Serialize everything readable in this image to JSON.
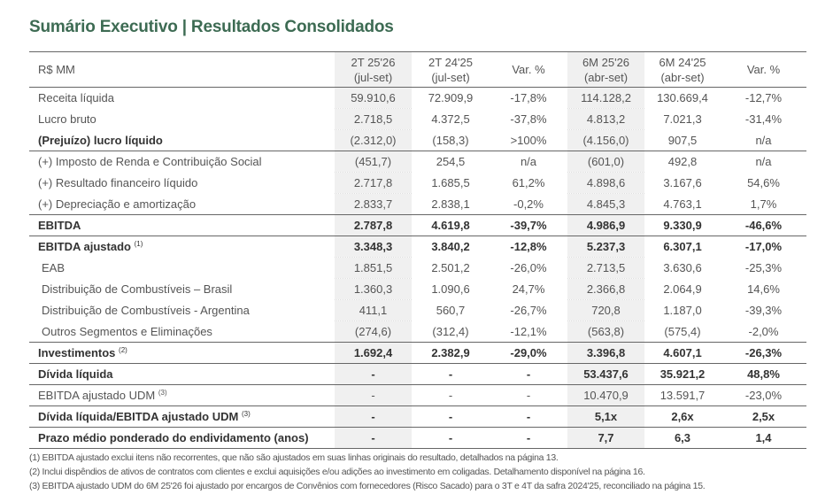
{
  "title": "Sumário Executivo | Resultados Consolidados",
  "table": {
    "unit_header": "R$ MM",
    "columns": [
      {
        "line1": "2T 25'26",
        "line2": "(jul-set)"
      },
      {
        "line1": "2T 24'25",
        "line2": "(jul-set)"
      },
      {
        "line1": "Var. %",
        "line2": ""
      },
      {
        "line1": "6M 25'26",
        "line2": "(abr-set)"
      },
      {
        "line1": "6M 24'25",
        "line2": "(abr-set)"
      },
      {
        "line1": "Var. %",
        "line2": ""
      }
    ],
    "rows": [
      {
        "label": "Receita líquida",
        "sup": "",
        "values": [
          "59.910,6",
          "72.909,9",
          "-17,8%",
          "114.128,2",
          "130.669,4",
          "-12,7%"
        ]
      },
      {
        "label": "Lucro bruto",
        "sup": "",
        "values": [
          "2.718,5",
          "4.372,5",
          "-37,8%",
          "4.813,2",
          "7.021,3",
          "-31,4%"
        ]
      },
      {
        "label": "(Prejuízo) lucro líquido",
        "sup": "",
        "values": [
          "(2.312,0)",
          "(158,3)",
          ">100%",
          "(4.156,0)",
          "907,5",
          "n/a"
        ]
      },
      {
        "label": "(+) Imposto de Renda e Contribuição Social",
        "sup": "",
        "values": [
          "(451,7)",
          "254,5",
          "n/a",
          "(601,0)",
          "492,8",
          "n/a"
        ]
      },
      {
        "label": "(+) Resultado financeiro líquido",
        "sup": "",
        "values": [
          "2.717,8",
          "1.685,5",
          "61,2%",
          "4.898,6",
          "3.167,6",
          "54,6%"
        ]
      },
      {
        "label": "(+) Depreciação e amortização",
        "sup": "",
        "values": [
          "2.833,7",
          "2.838,1",
          "-0,2%",
          "4.845,3",
          "4.763,1",
          "1,7%"
        ]
      },
      {
        "label": "EBITDA",
        "sup": "",
        "values": [
          "2.787,8",
          "4.619,8",
          "-39,7%",
          "4.986,9",
          "9.330,9",
          "-46,6%"
        ]
      },
      {
        "label": "EBITDA ajustado",
        "sup": "(1)",
        "values": [
          "3.348,3",
          "3.840,2",
          "-12,8%",
          "5.237,3",
          "6.307,1",
          "-17,0%"
        ]
      },
      {
        "label": "EAB",
        "sup": "",
        "values": [
          "1.851,5",
          "2.501,2",
          "-26,0%",
          "2.713,5",
          "3.630,6",
          "-25,3%"
        ]
      },
      {
        "label": "Distribuição de Combustíveis – Brasil",
        "sup": "",
        "values": [
          "1.360,3",
          "1.090,6",
          "24,7%",
          "2.366,8",
          "2.064,9",
          "14,6%"
        ]
      },
      {
        "label": "Distribuição de Combustíveis - Argentina",
        "sup": "",
        "values": [
          "411,1",
          "560,7",
          "-26,7%",
          "720,8",
          "1.187,0",
          "-39,3%"
        ]
      },
      {
        "label": "Outros Segmentos e Eliminações",
        "sup": "",
        "values": [
          "(274,6)",
          "(312,4)",
          "-12,1%",
          "(563,8)",
          "(575,4)",
          "-2,0%"
        ]
      },
      {
        "label": "Investimentos",
        "sup": "(2)",
        "values": [
          "1.692,4",
          "2.382,9",
          "-29,0%",
          "3.396,8",
          "4.607,1",
          "-26,3%"
        ]
      },
      {
        "label": "Dívida líquida",
        "sup": "",
        "values": [
          "-",
          "-",
          "-",
          "53.437,6",
          "35.921,2",
          "48,8%"
        ]
      },
      {
        "label": "EBITDA ajustado UDM",
        "sup": "(3)",
        "values": [
          "-",
          "-",
          "-",
          "10.470,9",
          "13.591,7",
          "-23,0%"
        ]
      },
      {
        "label": "Dívida líquida/EBITDA ajustado UDM",
        "sup": "(3)",
        "values": [
          "-",
          "-",
          "-",
          "5,1x",
          "2,6x",
          "2,5x"
        ]
      },
      {
        "label": "Prazo médio ponderado do endividamento (anos)",
        "sup": "",
        "values": [
          "-",
          "-",
          "-",
          "7,7",
          "6,3",
          "1,4"
        ]
      }
    ]
  },
  "footnotes": [
    "(1) EBITDA ajustado exclui itens não recorrentes, que não são ajustados em suas linhas originais do resultado, detalhados na página 13.",
    "(2) Inclui dispêndios de ativos de contratos com clientes e exclui aquisições e/ou adições ao investimento em coligadas. Detalhamento disponível na página 16.",
    "(3) EBITDA ajustado UDM do 6M 25'26 foi ajustado por encargos de Convênios com fornecedores (Risco Sacado) para o 3T e 4T da safra 2024'25, reconciliado na página 15."
  ]
}
